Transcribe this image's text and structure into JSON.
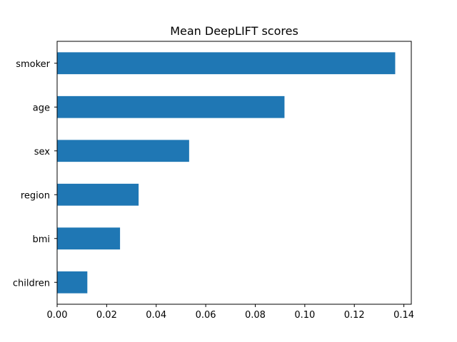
{
  "chart_data": {
    "type": "bar",
    "orientation": "horizontal",
    "title": "Mean DeepLIFT scores",
    "xlabel": "",
    "ylabel": "",
    "categories": [
      "smoker",
      "age",
      "sex",
      "region",
      "bmi",
      "children"
    ],
    "values": [
      0.1365,
      0.0918,
      0.0533,
      0.0329,
      0.0254,
      0.0122
    ],
    "xlim": [
      0,
      0.143
    ],
    "xticks": [
      0.0,
      0.02,
      0.04,
      0.06,
      0.08,
      0.1,
      0.12,
      0.14
    ],
    "xtick_labels": [
      "0.00",
      "0.02",
      "0.04",
      "0.06",
      "0.08",
      "0.10",
      "0.12",
      "0.14"
    ],
    "bar_color": "#1f77b4",
    "grid": false,
    "legend": false
  }
}
